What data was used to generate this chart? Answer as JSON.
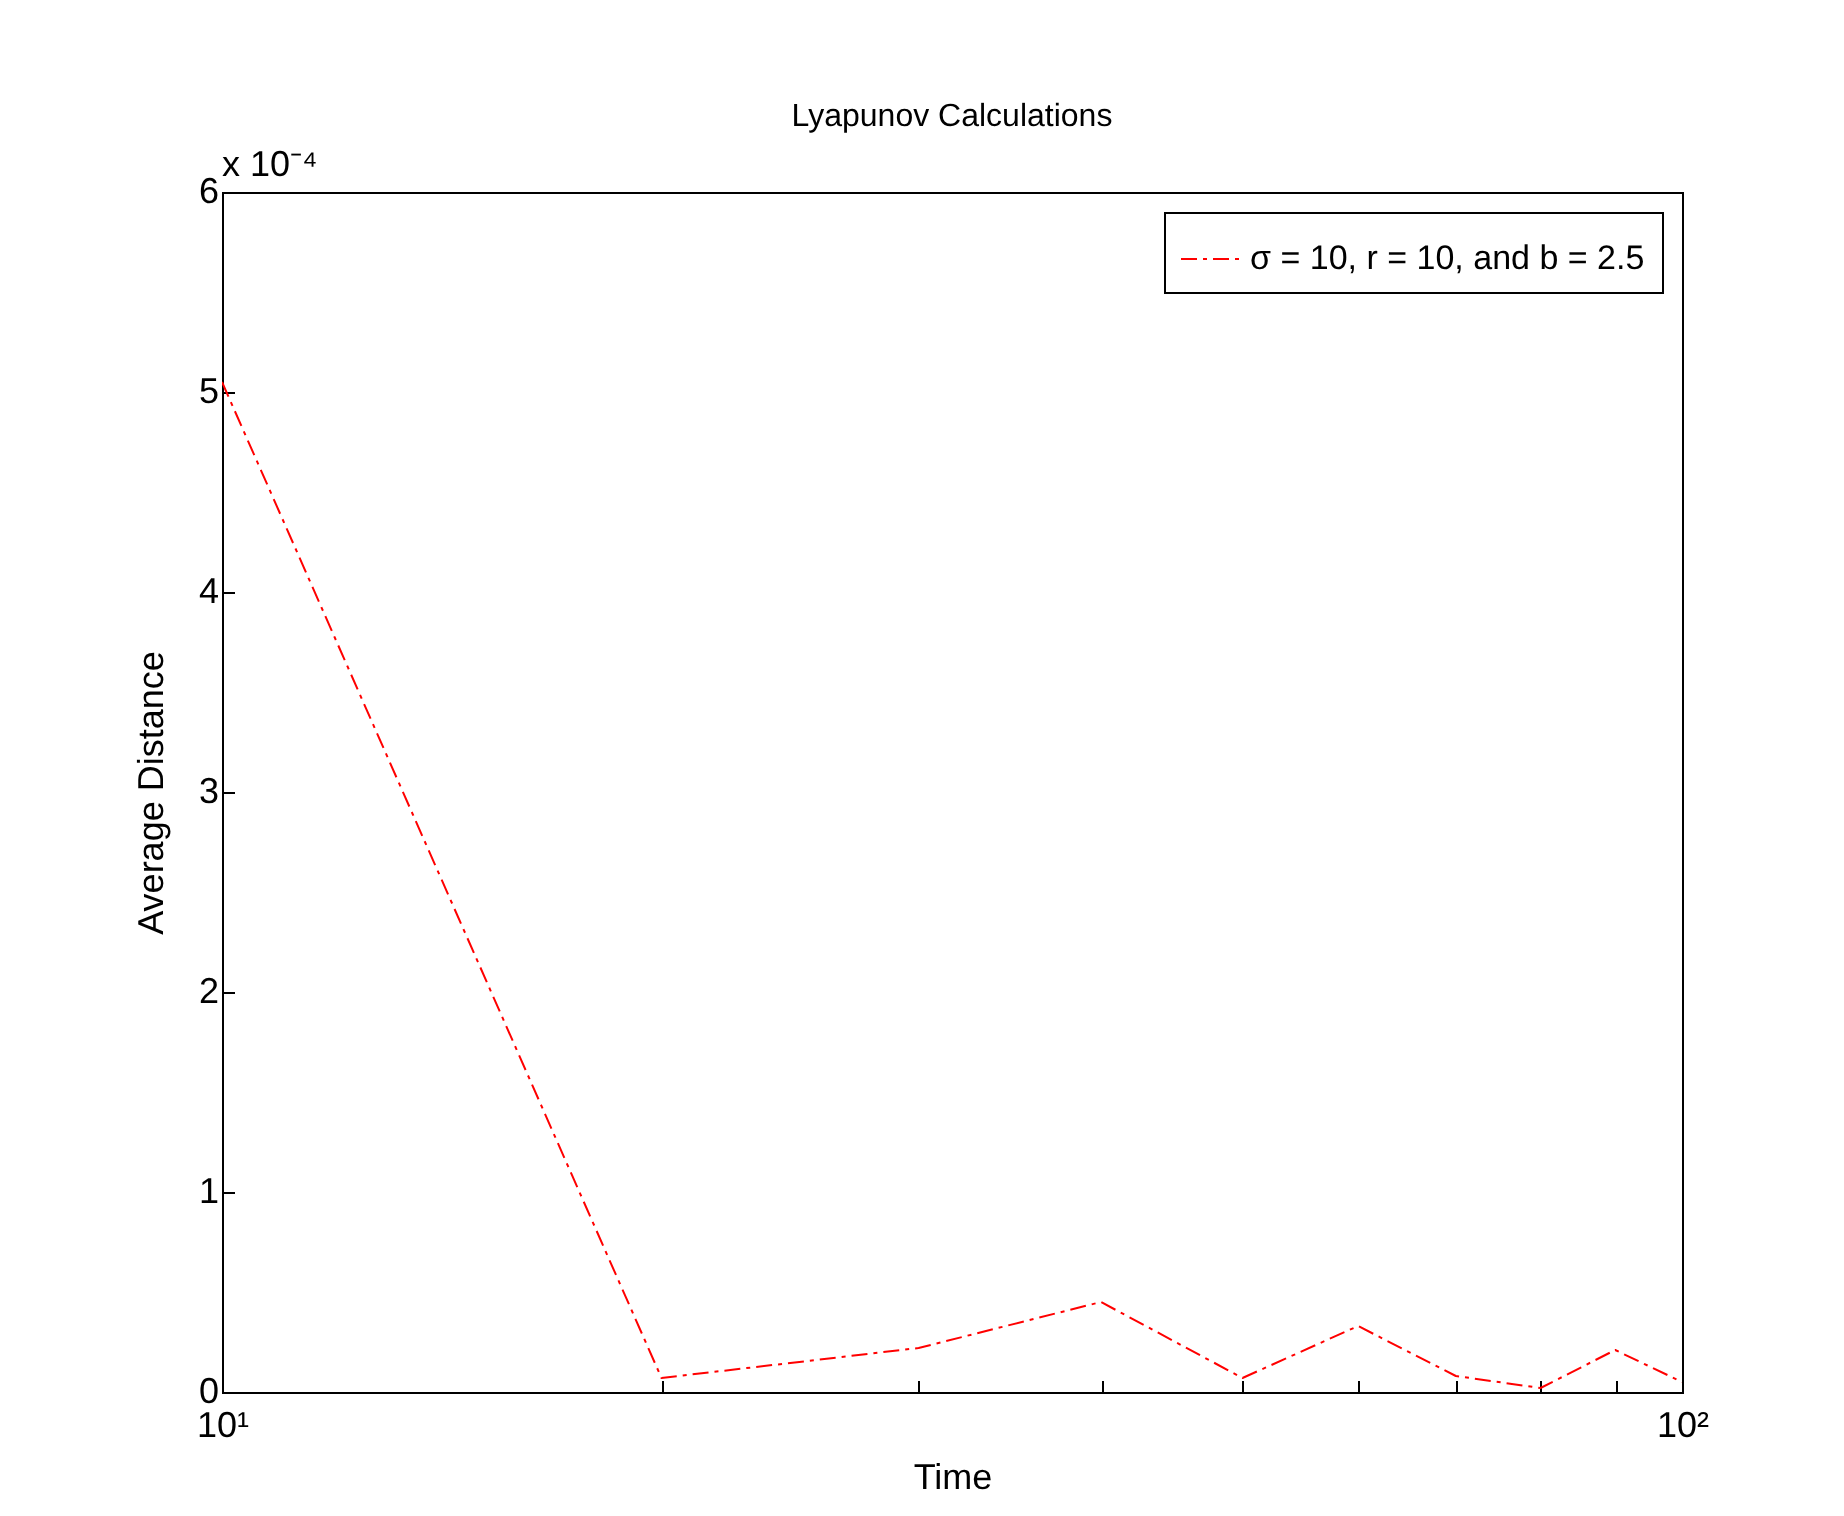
{
  "chart_data": {
    "type": "line",
    "title": "Lyapunov Calculations",
    "xlabel": "Time",
    "ylabel": "Average Distance",
    "annotations": [
      "x 10⁻⁴"
    ],
    "x": [
      10,
      20,
      30,
      40,
      50,
      60,
      70,
      80,
      90,
      100
    ],
    "series": [
      {
        "name": "σ = 10, r = 10, and b = 2.5",
        "color": "#ff0000",
        "values": [
          5.05,
          0.07,
          0.22,
          0.45,
          0.07,
          0.33,
          0.08,
          0.02,
          0.21,
          0.05
        ]
      }
    ],
    "log": "x",
    "xlim": [
      10,
      100
    ],
    "ylim": [
      0,
      6
    ],
    "xticks": [
      {
        "value": 10,
        "label": "10¹"
      },
      {
        "value": 20,
        "label": null
      },
      {
        "value": 30,
        "label": null
      },
      {
        "value": 40,
        "label": null
      },
      {
        "value": 50,
        "label": null
      },
      {
        "value": 60,
        "label": null
      },
      {
        "value": 70,
        "label": null
      },
      {
        "value": 80,
        "label": null
      },
      {
        "value": 90,
        "label": null
      },
      {
        "value": 100,
        "label": "10²"
      }
    ],
    "yticks": [
      0,
      1,
      2,
      3,
      4,
      5,
      6
    ],
    "grid": false,
    "legend": "top right",
    "marker": "none",
    "line_style": "dashdot"
  }
}
